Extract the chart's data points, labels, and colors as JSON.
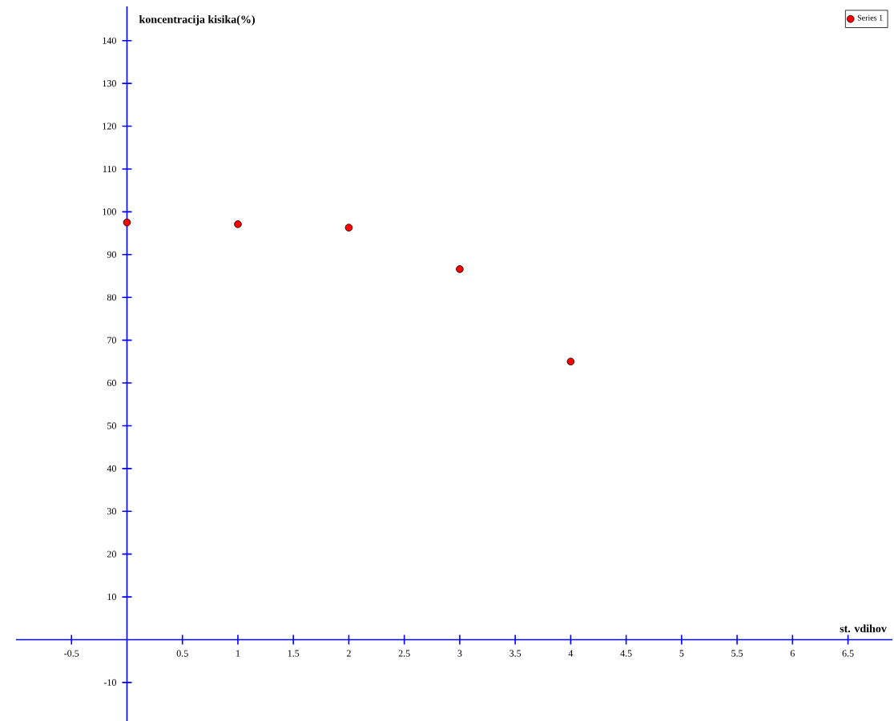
{
  "chart_data": {
    "type": "scatter",
    "xlabel": "st. vdihov",
    "ylabel": "koncentracija kisika(%)",
    "x": [
      0,
      1,
      2,
      3,
      4
    ],
    "series": [
      {
        "name": "Series 1",
        "color": "#ff0000",
        "values": [
          97.5,
          97.1,
          96.3,
          86.6,
          65.0
        ]
      }
    ],
    "xlim": [
      -1.0,
      6.9
    ],
    "ylim": [
      -19,
      148
    ],
    "xticks": [
      -0.5,
      0.5,
      1,
      1.5,
      2,
      2.5,
      3,
      3.5,
      4,
      4.5,
      5,
      5.5,
      6,
      6.5
    ],
    "yticks": [
      -10,
      10,
      20,
      30,
      40,
      50,
      60,
      70,
      80,
      90,
      100,
      110,
      120,
      130,
      140
    ],
    "legend": "top right",
    "grid": false
  }
}
